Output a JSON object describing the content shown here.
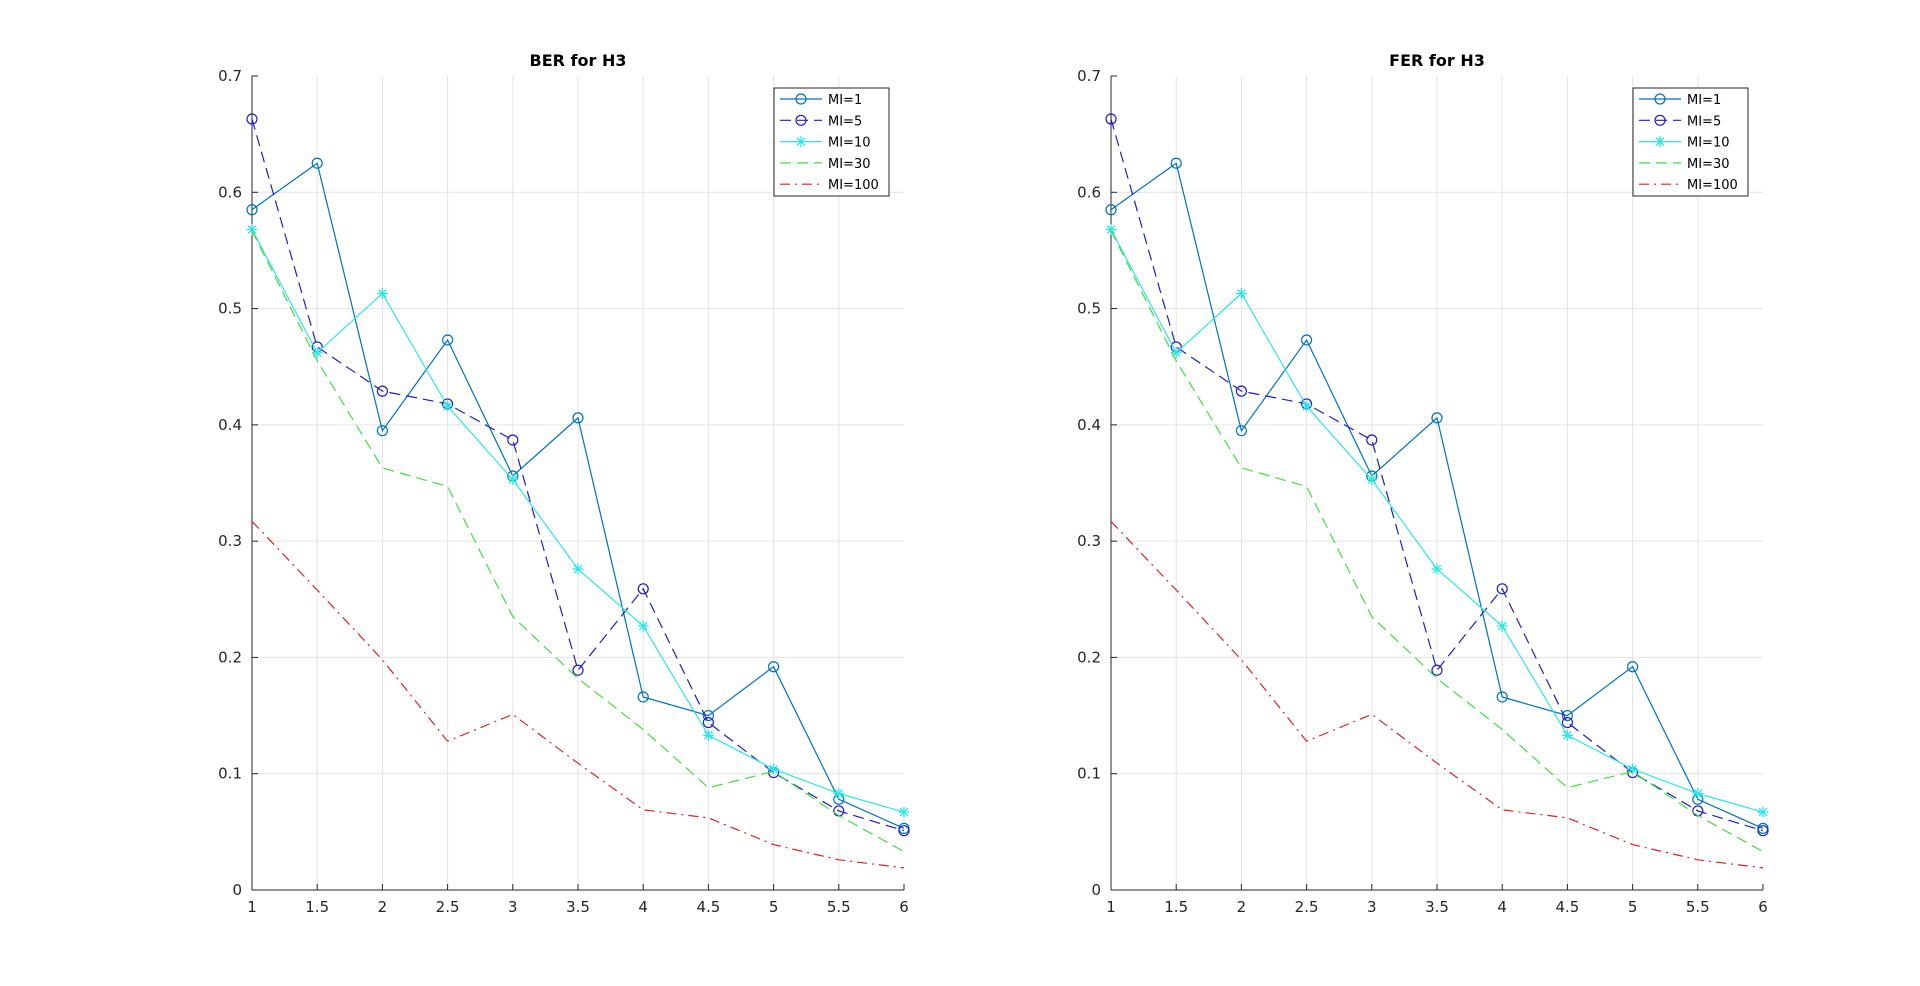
{
  "chart_data": [
    {
      "type": "line",
      "title": "BER for H3",
      "xlabel": "",
      "ylabel": "",
      "xlim": [
        1,
        6
      ],
      "ylim": [
        0,
        0.7
      ],
      "xticks": [
        1,
        1.5,
        2,
        2.5,
        3,
        3.5,
        4,
        4.5,
        5,
        5.5,
        6
      ],
      "xtick_labels": [
        "1",
        "1.5",
        "2",
        "2.5",
        "3",
        "3.5",
        "4",
        "4.5",
        "5",
        "5.5",
        "6"
      ],
      "yticks": [
        0,
        0.1,
        0.2,
        0.3,
        0.4,
        0.5,
        0.6,
        0.7
      ],
      "ytick_labels": [
        "0",
        "0.1",
        "0.2",
        "0.3",
        "0.4",
        "0.5",
        "0.6",
        "0.7"
      ],
      "grid": true,
      "legend_position": "top-right",
      "x": [
        1,
        1.5,
        2,
        2.5,
        3,
        3.5,
        4,
        4.5,
        5,
        5.5,
        6
      ],
      "series": [
        {
          "name": "MI=1",
          "color": "#0072bd",
          "dash": "solid",
          "marker": "circle",
          "values": [
            0.585,
            0.625,
            0.395,
            0.473,
            0.356,
            0.406,
            0.166,
            0.15,
            0.192,
            0.078,
            0.053
          ]
        },
        {
          "name": "MI=5",
          "color": "#1f1fbf",
          "dash": "dashed",
          "marker": "circle",
          "values": [
            0.663,
            0.467,
            0.429,
            0.418,
            0.387,
            0.189,
            0.259,
            0.144,
            0.101,
            0.068,
            0.051
          ]
        },
        {
          "name": "MI=10",
          "color": "#2ee6e6",
          "dash": "solid",
          "marker": "star",
          "values": [
            0.568,
            0.462,
            0.513,
            0.416,
            0.353,
            0.276,
            0.227,
            0.133,
            0.104,
            0.083,
            0.067
          ]
        },
        {
          "name": "MI=30",
          "color": "#44dd44",
          "dash": "dashed",
          "marker": "none",
          "values": [
            0.567,
            0.455,
            0.363,
            0.347,
            0.235,
            0.182,
            0.138,
            0.088,
            0.102,
            0.064,
            0.033
          ]
        },
        {
          "name": "MI=100",
          "color": "#d9232a",
          "dash": "dashdot",
          "marker": "none",
          "values": [
            0.317,
            0.258,
            0.198,
            0.128,
            0.151,
            0.109,
            0.069,
            0.062,
            0.039,
            0.026,
            0.019
          ]
        }
      ]
    },
    {
      "type": "line",
      "title": "FER for H3",
      "xlabel": "",
      "ylabel": "",
      "xlim": [
        1,
        6
      ],
      "ylim": [
        0,
        0.7
      ],
      "xticks": [
        1,
        1.5,
        2,
        2.5,
        3,
        3.5,
        4,
        4.5,
        5,
        5.5,
        6
      ],
      "xtick_labels": [
        "1",
        "1.5",
        "2",
        "2.5",
        "3",
        "3.5",
        "4",
        "4.5",
        "5",
        "5.5",
        "6"
      ],
      "yticks": [
        0,
        0.1,
        0.2,
        0.3,
        0.4,
        0.5,
        0.6,
        0.7
      ],
      "ytick_labels": [
        "0",
        "0.1",
        "0.2",
        "0.3",
        "0.4",
        "0.5",
        "0.6",
        "0.7"
      ],
      "grid": true,
      "legend_position": "top-right",
      "x": [
        1,
        1.5,
        2,
        2.5,
        3,
        3.5,
        4,
        4.5,
        5,
        5.5,
        6
      ],
      "series": [
        {
          "name": "MI=1",
          "color": "#0072bd",
          "dash": "solid",
          "marker": "circle",
          "values": [
            0.585,
            0.625,
            0.395,
            0.473,
            0.356,
            0.406,
            0.166,
            0.15,
            0.192,
            0.078,
            0.053
          ]
        },
        {
          "name": "MI=5",
          "color": "#1f1fbf",
          "dash": "dashed",
          "marker": "circle",
          "values": [
            0.663,
            0.467,
            0.429,
            0.418,
            0.387,
            0.189,
            0.259,
            0.144,
            0.101,
            0.068,
            0.051
          ]
        },
        {
          "name": "MI=10",
          "color": "#2ee6e6",
          "dash": "solid",
          "marker": "star",
          "values": [
            0.568,
            0.462,
            0.513,
            0.416,
            0.353,
            0.276,
            0.227,
            0.133,
            0.104,
            0.083,
            0.067
          ]
        },
        {
          "name": "MI=30",
          "color": "#44dd44",
          "dash": "dashed",
          "marker": "none",
          "values": [
            0.567,
            0.455,
            0.363,
            0.347,
            0.235,
            0.182,
            0.138,
            0.088,
            0.102,
            0.064,
            0.033
          ]
        },
        {
          "name": "MI=100",
          "color": "#d9232a",
          "dash": "dashdot",
          "marker": "none",
          "values": [
            0.317,
            0.258,
            0.198,
            0.128,
            0.151,
            0.109,
            0.069,
            0.062,
            0.039,
            0.026,
            0.019
          ]
        }
      ]
    }
  ]
}
